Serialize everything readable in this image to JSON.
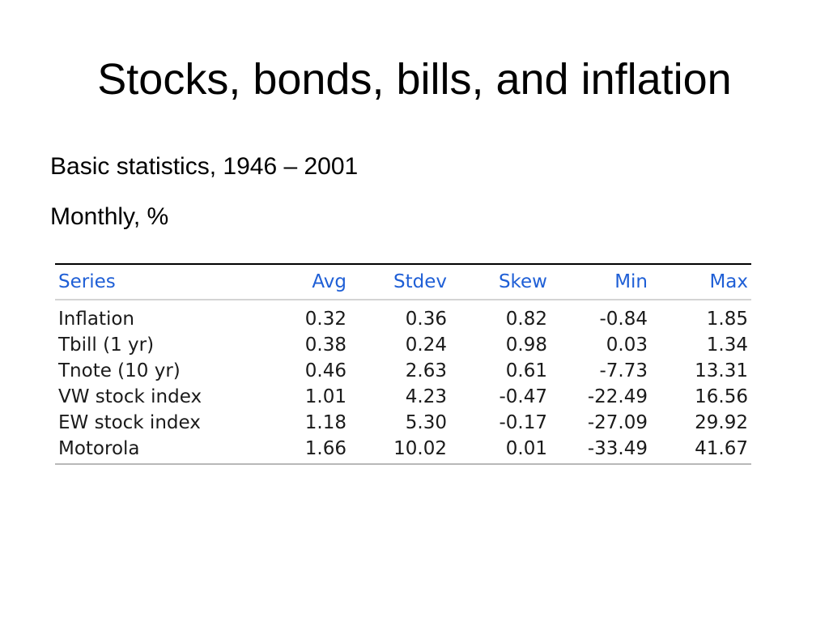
{
  "slide": {
    "title": "Stocks, bonds, bills, and inflation",
    "subtitle_1": "Basic statistics, 1946 – 2001",
    "subtitle_2": "Monthly, %"
  },
  "table": {
    "columns": [
      "Series",
      "Avg",
      "Stdev",
      "Skew",
      "Min",
      "Max"
    ],
    "rows": [
      [
        "Inflation",
        "0.32",
        "0.36",
        "0.82",
        "-0.84",
        "1.85"
      ],
      [
        "Tbill (1 yr)",
        "0.38",
        "0.24",
        "0.98",
        "0.03",
        "1.34"
      ],
      [
        "Tnote (10 yr)",
        "0.46",
        "2.63",
        "0.61",
        "-7.73",
        "13.31"
      ],
      [
        "VW stock index",
        "1.01",
        "4.23",
        "-0.47",
        "-22.49",
        "16.56"
      ],
      [
        "EW stock index",
        "1.18",
        "5.30",
        "-0.17",
        "-27.09",
        "29.92"
      ],
      [
        "Motorola",
        "1.66",
        "10.02",
        "0.01",
        "-33.49",
        "41.67"
      ]
    ]
  },
  "colors": {
    "header_text": "#1f5fd6",
    "body_text": "#1a1a1a",
    "background": "#ffffff"
  }
}
